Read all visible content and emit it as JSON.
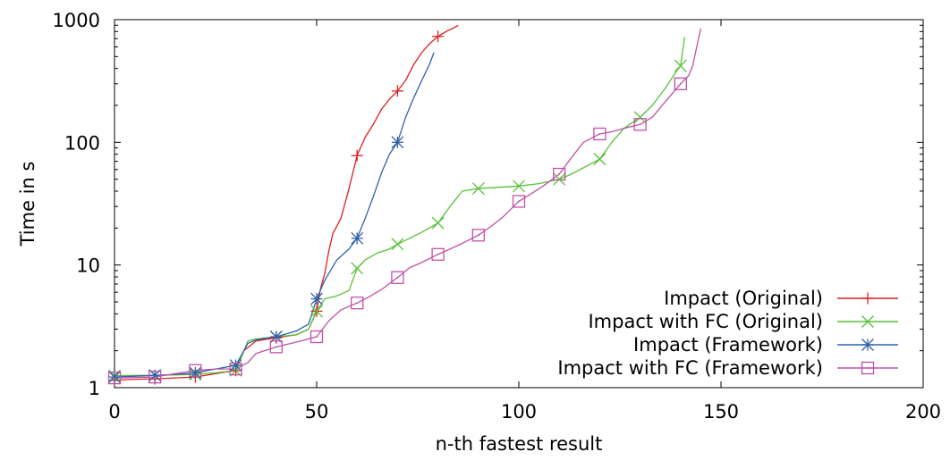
{
  "chart_data": {
    "type": "line",
    "title": "",
    "xlabel": "n-th fastest result",
    "ylabel": "Time in s",
    "xlim": [
      0,
      200
    ],
    "ylim": [
      1,
      1000
    ],
    "yscale": "log",
    "x_ticks": [
      0,
      50,
      100,
      150,
      200
    ],
    "y_ticks": [
      1,
      10,
      100,
      1000
    ],
    "x_tick_labels": [
      "0",
      "50",
      "100",
      "150",
      "200"
    ],
    "y_tick_labels": [
      "1",
      "10",
      "100",
      "1000"
    ],
    "grid": false,
    "legend_position": "bottom-right",
    "series": [
      {
        "name": "Impact (Original)",
        "color": "#dc2020",
        "marker": "plus",
        "marker_every": 10,
        "x": [
          0,
          5,
          10,
          15,
          20,
          25,
          30,
          32,
          35,
          40,
          45,
          48,
          50,
          51,
          52,
          53,
          54,
          56,
          58,
          60,
          62,
          64,
          66,
          68,
          70,
          72,
          74,
          76,
          78,
          80,
          82,
          84,
          85
        ],
        "y": [
          1.15,
          1.17,
          1.18,
          1.2,
          1.22,
          1.3,
          1.38,
          2.0,
          2.4,
          2.55,
          2.7,
          3.0,
          4.2,
          6.5,
          8.5,
          13,
          18,
          24,
          42,
          78,
          110,
          140,
          185,
          225,
          262,
          320,
          430,
          540,
          640,
          730,
          800,
          860,
          900
        ]
      },
      {
        "name": "Impact with FC (Original)",
        "color": "#58c038",
        "marker": "cross",
        "marker_every": 10,
        "x": [
          0,
          5,
          10,
          15,
          20,
          25,
          30,
          33,
          35,
          40,
          45,
          48,
          50,
          52,
          55,
          58,
          60,
          62,
          65,
          68,
          70,
          73,
          76,
          80,
          83,
          86,
          90,
          95,
          100,
          105,
          110,
          113,
          116,
          120,
          123,
          126,
          130,
          133,
          136,
          139,
          140,
          141
        ],
        "y": [
          1.25,
          1.26,
          1.26,
          1.27,
          1.28,
          1.32,
          1.38,
          2.4,
          2.5,
          2.6,
          2.7,
          3.0,
          4.2,
          5.3,
          5.6,
          6.2,
          9.4,
          11,
          12.5,
          13.5,
          14.8,
          16.5,
          18.5,
          22,
          30,
          40,
          42,
          43,
          44,
          46,
          50,
          55,
          62,
          73,
          100,
          130,
          160,
          200,
          270,
          380,
          420,
          720
        ]
      },
      {
        "name": "Impact (Framework)",
        "color": "#3060a8",
        "marker": "star",
        "marker_every": 10,
        "x": [
          0,
          5,
          10,
          15,
          20,
          25,
          30,
          33,
          35,
          40,
          45,
          48,
          50,
          52,
          55,
          58,
          60,
          62,
          64,
          66,
          68,
          70,
          72,
          74,
          76,
          78,
          79
        ],
        "y": [
          1.22,
          1.24,
          1.26,
          1.28,
          1.32,
          1.42,
          1.52,
          2.3,
          2.45,
          2.6,
          2.9,
          3.3,
          5.3,
          7.5,
          11,
          13.5,
          16.5,
          24,
          36,
          56,
          80,
          100,
          160,
          230,
          320,
          440,
          540
        ]
      },
      {
        "name": "Impact with FC (Framework)",
        "color": "#c050a8",
        "marker": "square",
        "marker_every": 10,
        "x": [
          0,
          5,
          10,
          15,
          20,
          25,
          30,
          33,
          35,
          40,
          45,
          50,
          53,
          56,
          60,
          63,
          66,
          70,
          73,
          76,
          80,
          83,
          86,
          90,
          93,
          96,
          100,
          103,
          106,
          110,
          113,
          116,
          120,
          123,
          126,
          130,
          133,
          136,
          140,
          142,
          143,
          144,
          145
        ],
        "y": [
          1.2,
          1.21,
          1.22,
          1.3,
          1.38,
          1.42,
          1.42,
          1.6,
          1.9,
          2.15,
          2.35,
          2.6,
          3.5,
          4.3,
          4.9,
          5.5,
          6.3,
          7.9,
          9.5,
          10.5,
          12.2,
          13.5,
          15,
          17.5,
          20.5,
          24.5,
          33,
          38,
          44,
          55,
          75,
          100,
          117,
          122,
          130,
          140,
          160,
          210,
          300,
          350,
          420,
          600,
          850
        ]
      }
    ]
  }
}
